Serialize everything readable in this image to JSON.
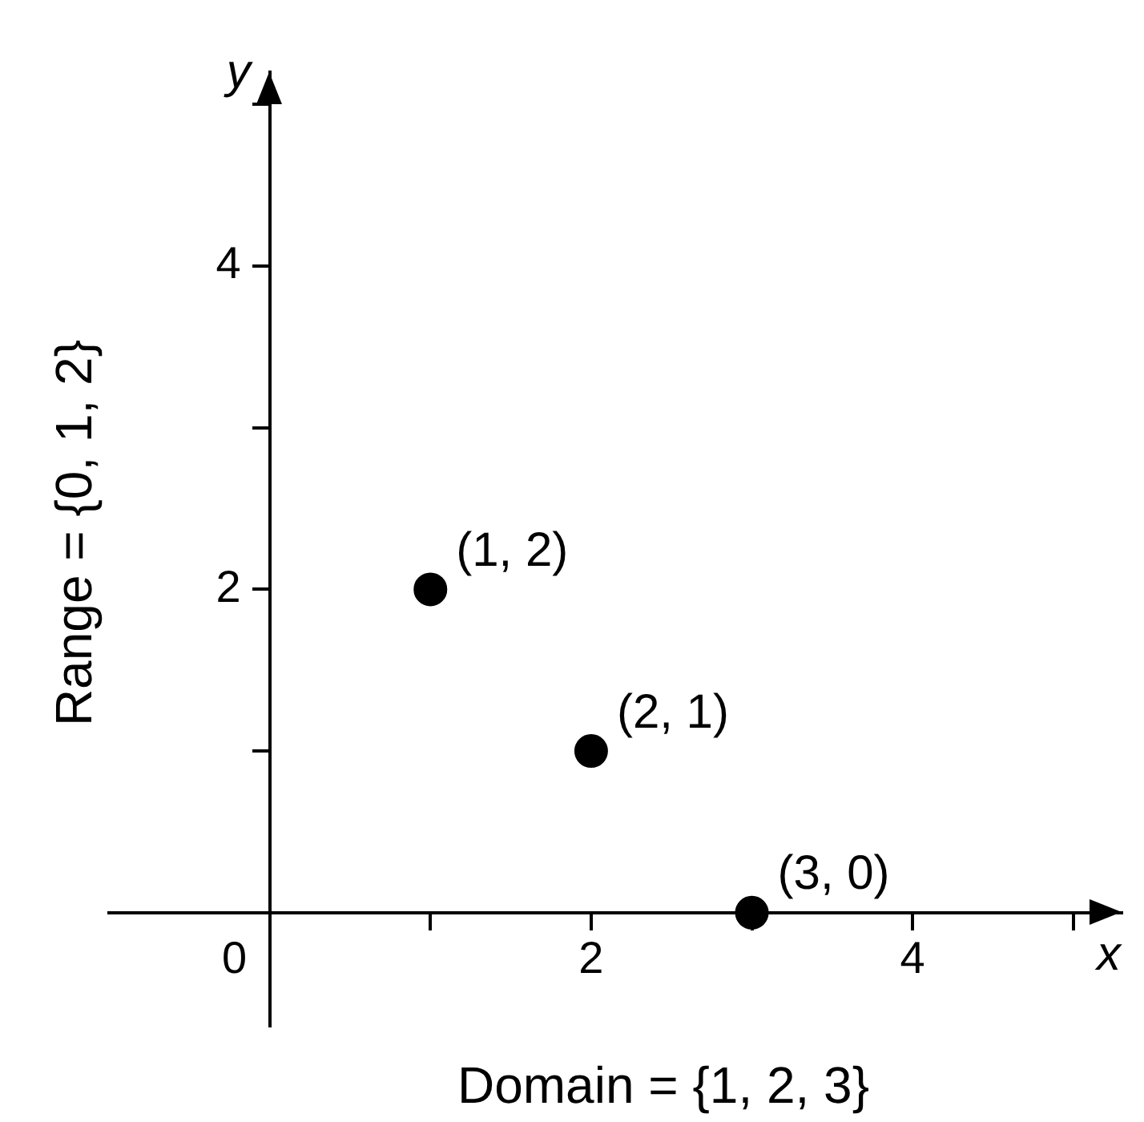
{
  "chart_data": {
    "type": "scatter",
    "xlabel": "Domain = {1, 2, 3}",
    "ylabel": "Range = {0, 1, 2}",
    "annotations": [
      "x",
      "y"
    ],
    "xlim": [
      -1,
      5.3
    ],
    "ylim": [
      -0.7,
      5.2
    ],
    "xticks": [
      {
        "value": 0,
        "label": "0"
      },
      {
        "value": 1,
        "label": null
      },
      2,
      {
        "value": 3,
        "label": null
      },
      4,
      {
        "value": 5,
        "label": null
      }
    ],
    "yticks": [
      {
        "value": 1,
        "label": null
      },
      2,
      {
        "value": 3,
        "label": null
      },
      4,
      {
        "value": 5,
        "label": null
      }
    ],
    "grid": false,
    "legend": false,
    "marker": "circle",
    "series": [
      {
        "color": "#000000",
        "x": [
          1,
          2,
          3
        ],
        "values": [
          2,
          1,
          0
        ],
        "value_labels": [
          "(1, 2)",
          "(2, 1)",
          "(3, 0)"
        ]
      }
    ]
  }
}
